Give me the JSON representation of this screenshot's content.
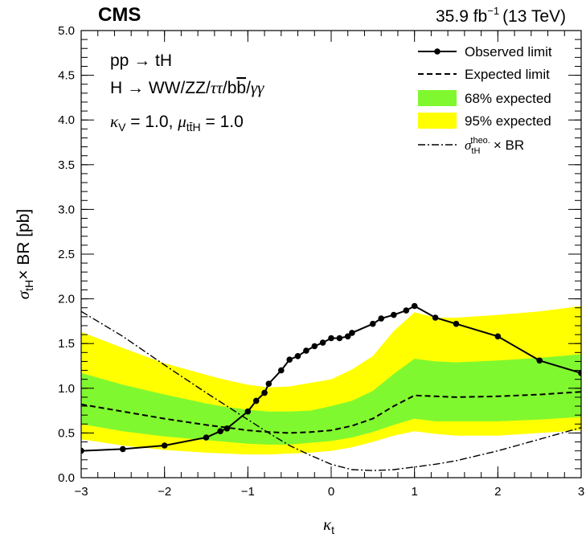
{
  "header": {
    "experiment": "CMS",
    "luminosity": "35.9 fb",
    "lumi_exponent": "−1",
    "energy": "(13 TeV)"
  },
  "annotations": {
    "process": "pp → tH",
    "decay": "H → WW/ZZ/ττ/bb/γγ",
    "kappa_v": "κV = 1.0, μttH = 1.0"
  },
  "chart_data": {
    "type": "line",
    "xlabel": "κt",
    "ylabel": "σtH× BR [pb]",
    "xlim": [
      -3,
      3
    ],
    "ylim": [
      0,
      5
    ],
    "grid": false,
    "legend_position": "top-right",
    "x_ticks": [
      "−3",
      "−2",
      "−1",
      "0",
      "1",
      "2",
      "3"
    ],
    "y_ticks": [
      "0.0",
      "0.5",
      "1.0",
      "1.5",
      "2.0",
      "2.5",
      "3.0",
      "3.5",
      "4.0",
      "4.5",
      "5.0"
    ],
    "legend": [
      {
        "key": "observed",
        "label": "Observed limit"
      },
      {
        "key": "expected",
        "label": "Expected limit"
      },
      {
        "key": "band68",
        "label": "68% expected"
      },
      {
        "key": "band95",
        "label": "95% expected"
      },
      {
        "key": "theory",
        "label": "σtHtheo. × BR"
      }
    ],
    "colors": {
      "observed": "#000000",
      "expected": "#000000",
      "band68": "#80f830",
      "band95": "#ffff00",
      "theory": "#000000"
    },
    "x": [
      -3,
      -2.5,
      -2,
      -1.5,
      -1.25,
      -1,
      -0.75,
      -0.5,
      -0.25,
      0,
      0.25,
      0.5,
      0.75,
      1,
      1.25,
      1.5,
      2,
      2.5,
      3
    ],
    "series": [
      {
        "key": "band95",
        "lower": [
          0.43,
          0.36,
          0.31,
          0.28,
          0.27,
          0.26,
          0.26,
          0.27,
          0.28,
          0.3,
          0.34,
          0.4,
          0.47,
          0.52,
          0.49,
          0.47,
          0.47,
          0.5,
          0.53
        ],
        "upper": [
          1.63,
          1.45,
          1.28,
          1.15,
          1.09,
          1.04,
          1.01,
          1.02,
          1.06,
          1.1,
          1.21,
          1.36,
          1.64,
          1.85,
          1.79,
          1.79,
          1.82,
          1.86,
          1.92
        ]
      },
      {
        "key": "band68",
        "lower": [
          0.6,
          0.52,
          0.46,
          0.42,
          0.4,
          0.38,
          0.37,
          0.37,
          0.39,
          0.41,
          0.45,
          0.51,
          0.59,
          0.66,
          0.63,
          0.63,
          0.63,
          0.65,
          0.68
        ],
        "upper": [
          1.17,
          1.04,
          0.93,
          0.83,
          0.79,
          0.76,
          0.74,
          0.74,
          0.75,
          0.8,
          0.86,
          0.97,
          1.16,
          1.33,
          1.3,
          1.29,
          1.31,
          1.34,
          1.38
        ]
      },
      {
        "key": "expected",
        "values": [
          0.82,
          0.74,
          0.66,
          0.59,
          0.56,
          0.53,
          0.51,
          0.5,
          0.51,
          0.53,
          0.58,
          0.66,
          0.8,
          0.92,
          0.91,
          0.9,
          0.91,
          0.93,
          0.96
        ]
      },
      {
        "key": "theory",
        "values": [
          1.86,
          1.58,
          1.26,
          0.95,
          0.8,
          0.65,
          0.5,
          0.36,
          0.25,
          0.15,
          0.09,
          0.08,
          0.09,
          0.12,
          0.15,
          0.19,
          0.3,
          0.43,
          0.56
        ]
      }
    ],
    "observed_points": [
      [
        -3,
        0.3
      ],
      [
        -2.5,
        0.32
      ],
      [
        -2,
        0.36
      ],
      [
        -1.5,
        0.45
      ],
      [
        -1.33,
        0.52
      ],
      [
        -1.25,
        0.55
      ],
      [
        -1,
        0.74
      ],
      [
        -0.9,
        0.86
      ],
      [
        -0.8,
        0.95
      ],
      [
        -0.75,
        1.05
      ],
      [
        -0.6,
        1.2
      ],
      [
        -0.5,
        1.32
      ],
      [
        -0.4,
        1.36
      ],
      [
        -0.3,
        1.42
      ],
      [
        -0.2,
        1.47
      ],
      [
        -0.1,
        1.51
      ],
      [
        0,
        1.56
      ],
      [
        0.1,
        1.56
      ],
      [
        0.2,
        1.58
      ],
      [
        0.25,
        1.62
      ],
      [
        0.5,
        1.72
      ],
      [
        0.6,
        1.78
      ],
      [
        0.75,
        1.82
      ],
      [
        0.9,
        1.87
      ],
      [
        1,
        1.92
      ],
      [
        1.25,
        1.79
      ],
      [
        1.5,
        1.72
      ],
      [
        2,
        1.58
      ],
      [
        2.5,
        1.31
      ],
      [
        3,
        1.17
      ]
    ]
  }
}
